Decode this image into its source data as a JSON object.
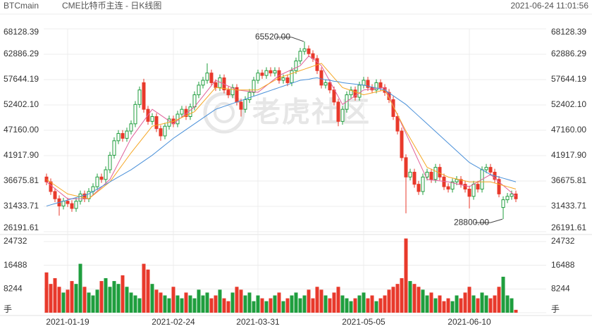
{
  "header": {
    "symbol": "BTCmain",
    "name": "CME比特币主连 - 日K线图",
    "timestamp": "2021-06-24 11:01:56"
  },
  "watermark": "老虎社区",
  "chart_data": {
    "type": "candlestick",
    "categories": [
      null,
      null,
      null,
      null,
      null,
      "2021-01-19",
      null,
      null,
      null,
      null,
      null,
      null,
      null,
      null,
      null,
      null,
      null,
      null,
      null,
      null,
      null,
      null,
      null,
      null,
      null,
      null,
      null,
      null,
      null,
      null,
      "2021-02-24",
      null,
      null,
      null,
      null,
      null,
      null,
      null,
      null,
      null,
      null,
      null,
      null,
      null,
      null,
      null,
      null,
      null,
      null,
      null,
      "2021-03-31",
      null,
      null,
      null,
      null,
      null,
      null,
      null,
      null,
      null,
      null,
      null,
      null,
      null,
      null,
      null,
      null,
      null,
      null,
      null,
      null,
      null,
      null,
      null,
      null,
      "2021-05-05",
      null,
      null,
      null,
      null,
      null,
      null,
      null,
      null,
      null,
      null,
      null,
      null,
      null,
      null,
      null,
      null,
      null,
      null,
      null,
      null,
      null,
      null,
      null,
      null,
      "2021-06-10",
      null,
      null,
      null,
      null,
      null,
      null,
      null,
      null,
      null,
      null,
      null
    ],
    "open": [
      37500,
      36500,
      34500,
      33000,
      31500,
      32500,
      32000,
      31000,
      32500,
      34000,
      33000,
      34500,
      35500,
      37500,
      37000,
      39000,
      42000,
      45000,
      46500,
      45500,
      47000,
      48500,
      52500,
      57000,
      51500,
      49000,
      50000,
      47500,
      46000,
      48000,
      49500,
      48500,
      50500,
      51500,
      50000,
      52000,
      54500,
      56500,
      57500,
      59000,
      57000,
      56000,
      58000,
      55500,
      54500,
      56000,
      53000,
      51500,
      53500,
      55000,
      57500,
      59000,
      58500,
      59500,
      59000,
      59500,
      57500,
      58000,
      57000,
      59500,
      61500,
      63500,
      64000,
      63000,
      62000,
      59500,
      56500,
      57000,
      55500,
      53000,
      49000,
      51500,
      54500,
      55500,
      54000,
      56500,
      57500,
      56000,
      55500,
      57000,
      56000,
      55000,
      53500,
      50000,
      47000,
      41500,
      37500,
      38500,
      36000,
      34500,
      37500,
      38500,
      37000,
      39500,
      37500,
      35500,
      35000,
      36500,
      37000,
      36000,
      35000,
      33500,
      36000,
      35000,
      39000,
      39500,
      38500,
      37000,
      31200,
      32800,
      33500,
      34000
    ],
    "high": [
      38200,
      37200,
      35200,
      33700,
      33200,
      33200,
      32700,
      33200,
      34700,
      34700,
      35200,
      36200,
      38200,
      38200,
      39700,
      42700,
      45700,
      47200,
      47200,
      47700,
      49200,
      53200,
      56200,
      57800,
      52200,
      50700,
      50700,
      48200,
      48700,
      50200,
      50200,
      51200,
      52200,
      52200,
      52700,
      55200,
      57200,
      58200,
      61000,
      59700,
      57700,
      58700,
      58700,
      56200,
      56700,
      56700,
      53700,
      54200,
      55700,
      58200,
      59700,
      59700,
      60200,
      60200,
      60200,
      60200,
      58700,
      58700,
      60200,
      62200,
      64200,
      65520,
      64700,
      63700,
      62700,
      60200,
      57700,
      57700,
      56200,
      53700,
      52200,
      55200,
      56200,
      56200,
      57200,
      58200,
      58200,
      56700,
      57700,
      57700,
      56700,
      55700,
      54200,
      50700,
      47700,
      42200,
      39200,
      39200,
      36700,
      38200,
      39200,
      39200,
      40200,
      40200,
      38200,
      36200,
      37200,
      37700,
      37700,
      36700,
      35700,
      36700,
      36700,
      39700,
      40200,
      40200,
      39200,
      37700,
      33500,
      34200,
      34700,
      34700
    ],
    "low": [
      35800,
      33800,
      32300,
      29500,
      30800,
      31300,
      30300,
      30300,
      31800,
      32300,
      32300,
      33800,
      34800,
      36300,
      36300,
      38300,
      41300,
      44300,
      44800,
      44800,
      46300,
      47800,
      51800,
      50800,
      48300,
      48300,
      46800,
      45000,
      45300,
      47300,
      47800,
      47800,
      49800,
      49300,
      49300,
      51300,
      53800,
      55800,
      56800,
      56300,
      55300,
      55300,
      54800,
      53800,
      53800,
      52300,
      50000,
      50800,
      52800,
      54300,
      56800,
      57800,
      57800,
      58300,
      58300,
      56800,
      56800,
      56300,
      56300,
      58800,
      60800,
      62800,
      62300,
      61300,
      58800,
      55800,
      55800,
      54800,
      52300,
      48000,
      48300,
      50800,
      53800,
      53300,
      53300,
      55800,
      55300,
      54800,
      54800,
      55300,
      54300,
      52800,
      49300,
      46300,
      40800,
      30000,
      36800,
      35300,
      33800,
      33800,
      36800,
      36300,
      36300,
      36800,
      34800,
      34300,
      34300,
      35800,
      35300,
      34300,
      31000,
      32800,
      34300,
      34300,
      38300,
      37800,
      36300,
      33300,
      28800,
      32100,
      32800,
      32300
    ],
    "close": [
      36500,
      34500,
      33000,
      31500,
      32500,
      32000,
      31000,
      32500,
      34000,
      33000,
      34500,
      35500,
      37500,
      37000,
      39000,
      42000,
      45000,
      46500,
      45500,
      47000,
      48500,
      52500,
      55500,
      51500,
      49000,
      50000,
      47500,
      46000,
      48000,
      49500,
      48500,
      50500,
      51500,
      50000,
      52000,
      54500,
      56500,
      57500,
      59000,
      57000,
      56000,
      58000,
      55500,
      54500,
      56000,
      53000,
      51500,
      53500,
      55000,
      57500,
      59000,
      58500,
      59500,
      59000,
      59500,
      57500,
      58000,
      57000,
      59500,
      61500,
      63500,
      64000,
      63000,
      62000,
      59500,
      56500,
      57000,
      55500,
      53000,
      49000,
      51500,
      54500,
      55500,
      54000,
      56500,
      57500,
      56000,
      55500,
      57000,
      56000,
      55000,
      53500,
      50000,
      47000,
      41500,
      37500,
      38500,
      36000,
      34500,
      37500,
      38500,
      37000,
      39500,
      37500,
      35500,
      35000,
      36500,
      37000,
      36000,
      35000,
      33500,
      36000,
      35000,
      39000,
      39500,
      38500,
      37000,
      34000,
      32800,
      33500,
      34000,
      33000
    ],
    "up_color": "#1f9e3e",
    "down_color": "#e8392b",
    "ylim": [
      26191.61,
      68128.39
    ],
    "yticks": [
      26191.61,
      31433.71,
      36675.81,
      {
        "value": 41917.9,
        "label": "41917.90"
      },
      {
        "value": 47160,
        "label": "47160.00"
      },
      {
        "value": 52402.1,
        "label": "52402.10"
      },
      57644.19,
      62886.29,
      68128.39
    ],
    "grid": true,
    "series": [
      {
        "color": "#e0609a",
        "values": [
          36500,
          35800,
          35100,
          34400,
          33700,
          33000,
          33000,
          33000,
          33000,
          33000,
          33000,
          33800,
          34600,
          35400,
          36200,
          37000,
          38700,
          40400,
          42100,
          43800,
          45500,
          46700,
          47900,
          49100,
          50300,
          51500,
          50900,
          50300,
          49700,
          49100,
          48500,
          49200,
          49900,
          50600,
          51300,
          52000,
          53100,
          54200,
          55300,
          56400,
          57500,
          57100,
          56700,
          56300,
          55900,
          55500,
          55400,
          55300,
          55200,
          55100,
          55000,
          55700,
          56400,
          57100,
          57800,
          58500,
          58900,
          59300,
          59700,
          60100,
          60500,
          61500,
          62500,
          62000,
          61300,
          60500,
          58900,
          57300,
          55700,
          54100,
          52500,
          53100,
          53700,
          54300,
          54900,
          55500,
          55600,
          55700,
          55800,
          55900,
          56000,
          54100,
          52200,
          50300,
          48400,
          46500,
          44600,
          42700,
          40800,
          38900,
          37000,
          36900,
          36800,
          36700,
          36600,
          36500,
          36300,
          36100,
          35900,
          35700,
          35500,
          36000,
          36500,
          37000,
          37500,
          38000,
          37250,
          36500,
          35750,
          35000,
          34250,
          33500
        ]
      },
      {
        "color": "#f5a623",
        "values": [
          37000,
          36400,
          35800,
          35200,
          34600,
          34000,
          33800,
          33600,
          33400,
          33200,
          33000,
          33700,
          34400,
          35100,
          35800,
          36500,
          37700,
          38900,
          40100,
          41300,
          42500,
          43600,
          44700,
          45800,
          46900,
          48000,
          48200,
          48400,
          48600,
          48800,
          49000,
          49400,
          49800,
          50200,
          50600,
          51000,
          52000,
          53000,
          54000,
          55000,
          56000,
          55900,
          55800,
          55700,
          55600,
          55500,
          55500,
          55500,
          55500,
          55500,
          55500,
          56000,
          56500,
          57000,
          57500,
          58000,
          58300,
          58600,
          58900,
          59200,
          59500,
          59800,
          60100,
          60400,
          60700,
          61000,
          60000,
          59000,
          58000,
          57000,
          56000,
          55700,
          55400,
          55100,
          54800,
          54500,
          54700,
          54900,
          55100,
          55300,
          55500,
          53800,
          52100,
          50400,
          48700,
          47000,
          45500,
          44000,
          42500,
          41000,
          39500,
          39100,
          38700,
          38300,
          37900,
          37500,
          37300,
          37100,
          36900,
          36700,
          36500,
          36500,
          36500,
          36500,
          36500,
          36500,
          36250,
          36000,
          35750,
          35500,
          35250,
          35000
        ]
      },
      {
        "color": "#4a90d9",
        "values": [
          31500,
          31750,
          32000,
          32250,
          32500,
          32750,
          33000,
          33250,
          33500,
          33750,
          34000,
          34500,
          35000,
          35500,
          36000,
          36500,
          37000,
          37500,
          38000,
          38500,
          39000,
          39600,
          40200,
          40800,
          41400,
          42000,
          42700,
          43400,
          44100,
          44800,
          45500,
          46100,
          46700,
          47300,
          47900,
          48500,
          49100,
          49700,
          50300,
          50900,
          51500,
          51800,
          52100,
          52400,
          52700,
          53000,
          53300,
          53600,
          53900,
          54200,
          54500,
          54800,
          55100,
          55400,
          55700,
          56000,
          56300,
          56600,
          56900,
          57200,
          57500,
          57600,
          57700,
          57900,
          58000,
          57800,
          57600,
          57500,
          57300,
          57200,
          57000,
          56900,
          56800,
          56700,
          56600,
          56500,
          56300,
          56100,
          55900,
          55700,
          55500,
          54900,
          54300,
          53700,
          53100,
          52500,
          51700,
          50900,
          50100,
          49300,
          48500,
          47700,
          46900,
          46100,
          45300,
          44500,
          43700,
          42900,
          42100,
          41300,
          40500,
          40000,
          39500,
          39000,
          38500,
          38000,
          37750,
          37500,
          37250,
          37000,
          36750,
          36500
        ]
      }
    ],
    "annotations": [
      {
        "label": "65520.00",
        "value": 65520
      },
      {
        "label": "28800.00",
        "value": 28800
      }
    ],
    "volume": {
      "values": [
        14000,
        10000,
        12000,
        9000,
        7000,
        8000,
        11000,
        10000,
        17000,
        9000,
        7000,
        6000,
        8000,
        11000,
        12000,
        9000,
        11000,
        10000,
        13000,
        9000,
        7000,
        6000,
        5000,
        17000,
        15000,
        10000,
        8000,
        7000,
        6000,
        5000,
        9000,
        6000,
        5000,
        7000,
        6000,
        5000,
        8000,
        6000,
        7000,
        5000,
        6000,
        8000,
        5000,
        4000,
        7000,
        9000,
        8000,
        6000,
        7000,
        4000,
        6000,
        5000,
        4000,
        5000,
        6000,
        7000,
        4000,
        5000,
        6000,
        7000,
        5000,
        6000,
        8000,
        5000,
        9000,
        8000,
        6000,
        5000,
        7000,
        9000,
        6000,
        5000,
        4000,
        5000,
        6000,
        7000,
        5000,
        6000,
        4000,
        5000,
        6000,
        8000,
        9000,
        10000,
        12000,
        25800,
        11000,
        10000,
        9000,
        8000,
        6000,
        7000,
        5000,
        6000,
        4000,
        5000,
        4000,
        6000,
        5000,
        7000,
        9000,
        6000,
        5000,
        7000,
        6000,
        5000,
        6000,
        9000,
        12500,
        6000,
        5000,
        1000
      ],
      "ylim": [
        0,
        24732
      ],
      "yticks": [
        {
          "value": 0,
          "label": "手"
        },
        8244,
        16488,
        24732
      ]
    }
  }
}
